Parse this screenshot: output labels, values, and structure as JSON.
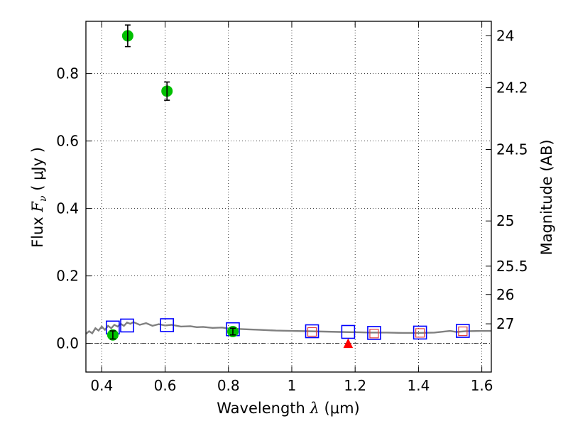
{
  "chart_data": {
    "type": "scatter",
    "title": "",
    "xlabel": {
      "text": "Wavelength",
      "symbol": "λ",
      "unit": "(μm)"
    },
    "ylabel": {
      "text": "Flux",
      "symbol": "F",
      "subscript": "ν",
      "unit": "( μJy )"
    },
    "y2label": "Magnitude (AB)",
    "xlim": [
      0.35,
      1.63
    ],
    "ylim": [
      -0.085,
      0.955
    ],
    "grid": true,
    "x_ticks": [
      0.4,
      0.6,
      0.8,
      1.0,
      1.2,
      1.4,
      1.6
    ],
    "x_tick_labels": [
      "0.4",
      "0.6",
      "0.8",
      "1",
      "1.2",
      "1.4",
      "1.6"
    ],
    "y_ticks": [
      0.0,
      0.2,
      0.4,
      0.6,
      0.8
    ],
    "y_tick_labels": [
      "0.0",
      "0.2",
      "0.4",
      "0.6",
      "0.8"
    ],
    "y2_ticks": [
      {
        "label": "24",
        "flux": 0.912
      },
      {
        "label": "24.2",
        "flux": 0.758
      },
      {
        "label": "24.5",
        "flux": 0.575
      },
      {
        "label": "25",
        "flux": 0.363
      },
      {
        "label": "25.5",
        "flux": 0.229
      },
      {
        "label": "26",
        "flux": 0.145
      },
      {
        "label": "27",
        "flux": 0.058
      }
    ],
    "series": [
      {
        "name": "observed",
        "marker": "circle",
        "color": "#00c000",
        "points": [
          {
            "x": 0.435,
            "y": 0.025,
            "err": 0.012
          },
          {
            "x": 0.482,
            "y": 0.912,
            "err": 0.032
          },
          {
            "x": 0.606,
            "y": 0.748,
            "err": 0.027
          },
          {
            "x": 0.814,
            "y": 0.035,
            "err": 0.01
          }
        ]
      },
      {
        "name": "upper_limit",
        "marker": "triangle",
        "color": "#ff0000",
        "points": [
          {
            "x": 1.178,
            "y": 0.0
          }
        ]
      },
      {
        "name": "model_photometry",
        "marker": "square-open",
        "color": "#0000ff",
        "points": [
          {
            "x": 0.435,
            "y": 0.047
          },
          {
            "x": 0.48,
            "y": 0.053
          },
          {
            "x": 0.606,
            "y": 0.054
          },
          {
            "x": 0.814,
            "y": 0.042
          },
          {
            "x": 1.064,
            "y": 0.036
          },
          {
            "x": 1.178,
            "y": 0.034
          },
          {
            "x": 1.26,
            "y": 0.031
          },
          {
            "x": 1.405,
            "y": 0.032
          },
          {
            "x": 1.54,
            "y": 0.037
          }
        ]
      },
      {
        "name": "model_photometry_inner",
        "marker": "square-open-small",
        "color": "#e04040",
        "points": [
          {
            "x": 1.064,
            "y": 0.034
          },
          {
            "x": 1.26,
            "y": 0.029
          },
          {
            "x": 1.405,
            "y": 0.031
          },
          {
            "x": 1.54,
            "y": 0.036
          }
        ]
      },
      {
        "name": "model_sed",
        "marker": "line",
        "color": "#808080",
        "points": [
          {
            "x": 0.35,
            "y": 0.028
          },
          {
            "x": 0.36,
            "y": 0.036
          },
          {
            "x": 0.37,
            "y": 0.03
          },
          {
            "x": 0.38,
            "y": 0.045
          },
          {
            "x": 0.39,
            "y": 0.038
          },
          {
            "x": 0.4,
            "y": 0.05
          },
          {
            "x": 0.41,
            "y": 0.04
          },
          {
            "x": 0.42,
            "y": 0.052
          },
          {
            "x": 0.43,
            "y": 0.045
          },
          {
            "x": 0.44,
            "y": 0.055
          },
          {
            "x": 0.45,
            "y": 0.05
          },
          {
            "x": 0.46,
            "y": 0.058
          },
          {
            "x": 0.47,
            "y": 0.052
          },
          {
            "x": 0.48,
            "y": 0.062
          },
          {
            "x": 0.49,
            "y": 0.058
          },
          {
            "x": 0.5,
            "y": 0.063
          },
          {
            "x": 0.52,
            "y": 0.055
          },
          {
            "x": 0.54,
            "y": 0.06
          },
          {
            "x": 0.56,
            "y": 0.052
          },
          {
            "x": 0.58,
            "y": 0.057
          },
          {
            "x": 0.6,
            "y": 0.053
          },
          {
            "x": 0.62,
            "y": 0.055
          },
          {
            "x": 0.65,
            "y": 0.05
          },
          {
            "x": 0.68,
            "y": 0.051
          },
          {
            "x": 0.7,
            "y": 0.048
          },
          {
            "x": 0.72,
            "y": 0.049
          },
          {
            "x": 0.75,
            "y": 0.046
          },
          {
            "x": 0.78,
            "y": 0.047
          },
          {
            "x": 0.8,
            "y": 0.044
          },
          {
            "x": 0.85,
            "y": 0.042
          },
          {
            "x": 0.9,
            "y": 0.04
          },
          {
            "x": 0.95,
            "y": 0.038
          },
          {
            "x": 1.0,
            "y": 0.037
          },
          {
            "x": 1.05,
            "y": 0.036
          },
          {
            "x": 1.1,
            "y": 0.035
          },
          {
            "x": 1.15,
            "y": 0.034
          },
          {
            "x": 1.2,
            "y": 0.033
          },
          {
            "x": 1.25,
            "y": 0.032
          },
          {
            "x": 1.3,
            "y": 0.032
          },
          {
            "x": 1.35,
            "y": 0.031
          },
          {
            "x": 1.4,
            "y": 0.031
          },
          {
            "x": 1.45,
            "y": 0.032
          },
          {
            "x": 1.5,
            "y": 0.037
          },
          {
            "x": 1.52,
            "y": 0.034
          },
          {
            "x": 1.55,
            "y": 0.036
          },
          {
            "x": 1.6,
            "y": 0.037
          },
          {
            "x": 1.63,
            "y": 0.037
          }
        ]
      }
    ],
    "zero_line": 0.0
  }
}
